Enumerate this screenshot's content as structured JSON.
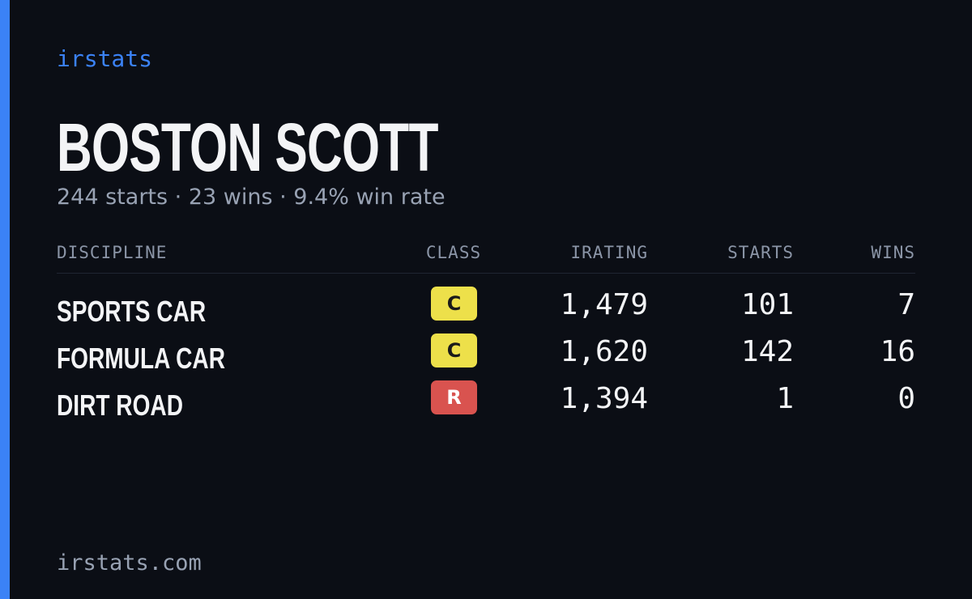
{
  "brand": "irstats",
  "header": {
    "title": "BOSTON SCOTT",
    "subtitle": "244 starts · 23 wins · 9.4% win rate"
  },
  "table": {
    "columns": [
      "DISCIPLINE",
      "CLASS",
      "IRATING",
      "STARTS",
      "WINS"
    ],
    "rows": [
      {
        "discipline": "SPORTS CAR",
        "class": "C",
        "class_color": "#ede04a",
        "class_text_color": "#1a1a1a",
        "irating": "1,479",
        "starts": "101",
        "wins": "7"
      },
      {
        "discipline": "FORMULA CAR",
        "class": "C",
        "class_color": "#ede04a",
        "class_text_color": "#1a1a1a",
        "irating": "1,620",
        "starts": "142",
        "wins": "16"
      },
      {
        "discipline": "DIRT ROAD",
        "class": "R",
        "class_color": "#d9534f",
        "class_text_color": "#ffffff",
        "irating": "1,394",
        "starts": "1",
        "wins": "0"
      }
    ]
  },
  "footer": "irstats.com"
}
